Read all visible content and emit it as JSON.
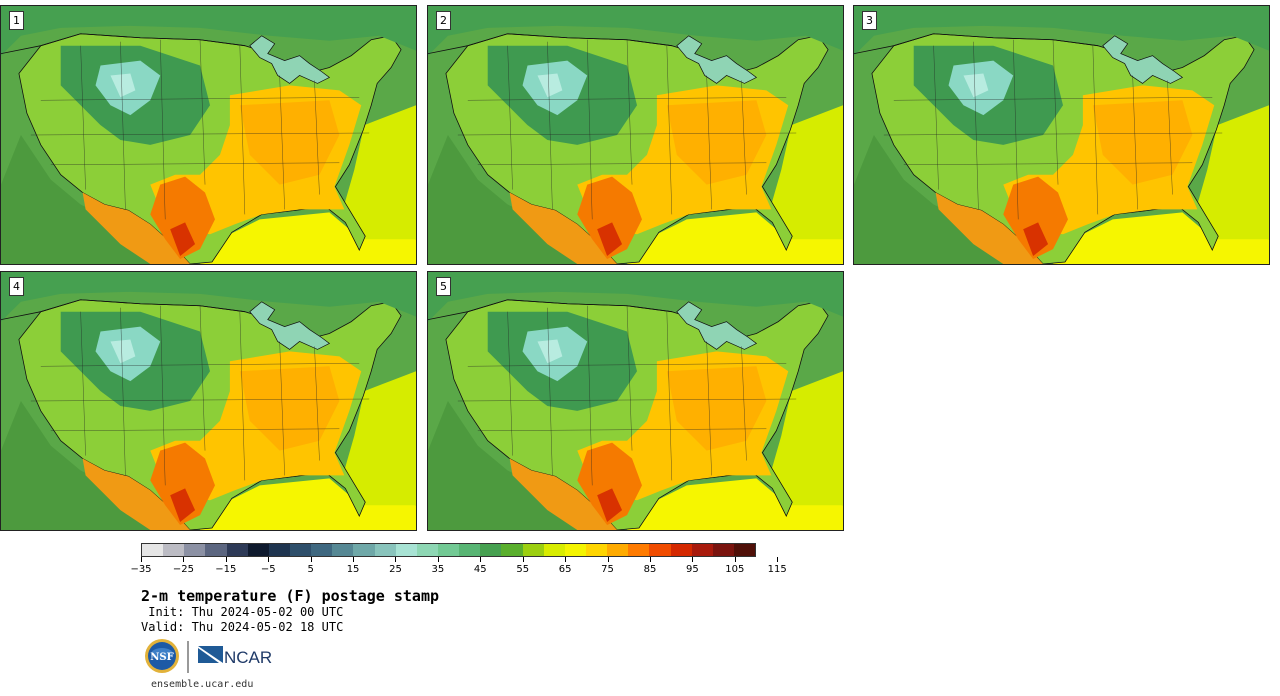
{
  "panels": [
    {
      "label": "1"
    },
    {
      "label": "2"
    },
    {
      "label": "3"
    },
    {
      "label": "4"
    },
    {
      "label": "5"
    }
  ],
  "colorbar": {
    "colors": [
      "#e6e6e6",
      "#bcbcc4",
      "#8c91a4",
      "#5c6680",
      "#2e3a57",
      "#0f1a2e",
      "#1f3550",
      "#2f4f6b",
      "#3f6880",
      "#568894",
      "#6fa8a8",
      "#89c4bc",
      "#a8e3d4",
      "#8ed7b4",
      "#72c994",
      "#58b574",
      "#46a050",
      "#5aaf2d",
      "#9ccf10",
      "#d8ec00",
      "#f4f400",
      "#ffd500",
      "#ffab00",
      "#ff7b00",
      "#f04c00",
      "#d42800",
      "#a81a0c",
      "#7a140e",
      "#501008"
    ],
    "ticks": [
      "−35",
      "−25",
      "−15",
      "−5",
      "5",
      "15",
      "25",
      "35",
      "45",
      "55",
      "65",
      "75",
      "85",
      "95",
      "105",
      "115"
    ]
  },
  "title": "2-m temperature (F) postage stamp",
  "init_text": " Init: Thu 2024-05-02 00 UTC",
  "valid_text": "Valid: Thu 2024-05-02 18 UTC",
  "logos": {
    "nsf": "NSF",
    "ncar": "NCAR"
  },
  "site": "ensemble.ucar.edu"
}
